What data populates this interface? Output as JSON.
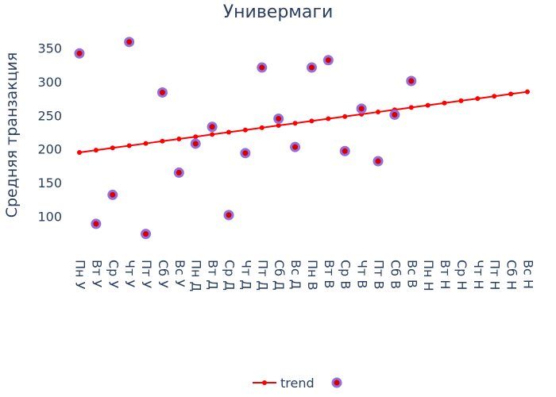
{
  "chart_data": {
    "type": "scatter",
    "title": "Универмаги",
    "xlabel": "",
    "ylabel": "Средняя транзакция",
    "categories": [
      "Пн У",
      "Вт У",
      "Ср У",
      "Чт У",
      "Пт У",
      "Сб У",
      "Вс У",
      "Пн Д",
      "Вт Д",
      "Ср Д",
      "Чт Д",
      "Пт Д",
      "Сб Д",
      "Вс Д",
      "Пн В",
      "Вт В",
      "Ср В",
      "Чт В",
      "Пт В",
      "Сб В",
      "Вс В",
      "Пн Н",
      "Вт Н",
      "Ср Н",
      "Чт Н",
      "Пт Н",
      "Сб Н",
      "Вс Н"
    ],
    "y_ticks": [
      100,
      150,
      200,
      250,
      300,
      350
    ],
    "ylim": [
      50,
      380
    ],
    "series": [
      {
        "name": "trend",
        "mode": "lines+markers",
        "color": "#ff0000",
        "values": [
          195,
          198.3,
          201.7,
          205,
          208.3,
          211.7,
          215,
          218.3,
          221.7,
          225,
          228.3,
          231.7,
          235,
          238.3,
          241.7,
          245,
          248.3,
          251.7,
          255,
          258.3,
          261.7,
          265,
          268.3,
          271.7,
          275,
          278.3,
          281.7,
          285
        ]
      },
      {
        "name": "",
        "mode": "markers",
        "color": "#d40000",
        "outline": "#9370db",
        "values": [
          342,
          89,
          132,
          359,
          74,
          284,
          165,
          208,
          233,
          102,
          194,
          321,
          245,
          203,
          321,
          332,
          197,
          260,
          182,
          251,
          301,
          null,
          null,
          null,
          null,
          null,
          null,
          null
        ]
      }
    ],
    "grid": false,
    "legend_position": "bottom-center"
  }
}
